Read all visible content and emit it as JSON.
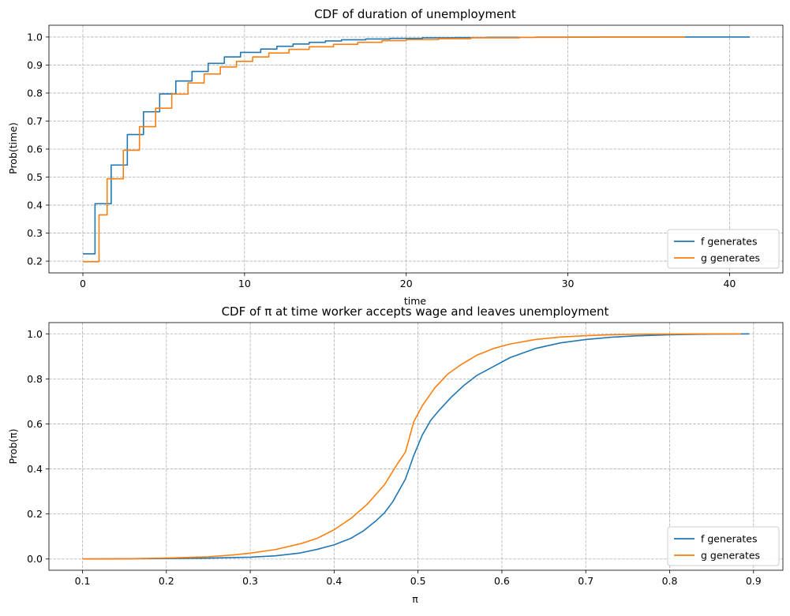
{
  "chart_data": [
    {
      "type": "line",
      "title": "CDF of duration of unemployment",
      "xlabel": "time",
      "ylabel": "Prob(time)",
      "xlim": [
        -2.1,
        43.3
      ],
      "ylim": [
        0.158,
        1.042
      ],
      "xticks": [
        0,
        10,
        20,
        30,
        40
      ],
      "yticks": [
        0.2,
        0.3,
        0.4,
        0.5,
        0.6,
        0.7,
        0.8,
        0.9,
        1.0
      ],
      "grid": true,
      "legend_location": "lower right",
      "step": true,
      "series": [
        {
          "name": "f generates",
          "color": "#1f77b4",
          "x": [
            0,
            0.25,
            0.75,
            1.75,
            2.75,
            3.75,
            4.75,
            5.75,
            6.75,
            7.75,
            8.75,
            9.75,
            11.0,
            12.0,
            13.0,
            14.0,
            15.0,
            16.0,
            17.5,
            19.0,
            21.0,
            23.0,
            25.0,
            28.0,
            32.0,
            41.25
          ],
          "y": [
            0.226,
            0.226,
            0.405,
            0.543,
            0.652,
            0.733,
            0.797,
            0.843,
            0.877,
            0.906,
            0.929,
            0.945,
            0.957,
            0.967,
            0.975,
            0.981,
            0.986,
            0.99,
            0.993,
            0.995,
            0.997,
            0.998,
            0.999,
            0.9995,
            1.0,
            1.0
          ]
        },
        {
          "name": "g generates",
          "color": "#ff7f0e",
          "x": [
            0,
            0.5,
            1.0,
            1.5,
            2.5,
            3.5,
            4.5,
            5.5,
            6.5,
            7.5,
            8.5,
            9.5,
            10.5,
            11.5,
            12.75,
            14.0,
            15.5,
            17.0,
            18.5,
            20.0,
            22.0,
            24.0,
            27.0,
            30.0,
            37.25
          ],
          "y": [
            0.198,
            0.198,
            0.365,
            0.494,
            0.596,
            0.68,
            0.746,
            0.796,
            0.836,
            0.868,
            0.893,
            0.913,
            0.929,
            0.943,
            0.956,
            0.965,
            0.974,
            0.981,
            0.987,
            0.991,
            0.994,
            0.997,
            0.999,
            1.0,
            1.0
          ]
        }
      ]
    },
    {
      "type": "line",
      "title": "CDF of π at time worker accepts wage and leaves unemployment",
      "xlabel": "π",
      "ylabel": "Prob(π)",
      "xlim": [
        0.06,
        0.935
      ],
      "ylim": [
        -0.05,
        1.05
      ],
      "xticks": [
        0.1,
        0.2,
        0.3,
        0.4,
        0.5,
        0.6,
        0.7,
        0.8,
        0.9
      ],
      "yticks": [
        0.0,
        0.2,
        0.4,
        0.6,
        0.8,
        1.0
      ],
      "grid": true,
      "legend_location": "lower right",
      "step": false,
      "series": [
        {
          "name": "f generates",
          "color": "#1f77b4",
          "x": [
            0.1,
            0.15,
            0.2,
            0.25,
            0.3,
            0.33,
            0.36,
            0.38,
            0.4,
            0.42,
            0.435,
            0.45,
            0.46,
            0.47,
            0.485,
            0.495,
            0.505,
            0.515,
            0.525,
            0.54,
            0.555,
            0.57,
            0.59,
            0.61,
            0.64,
            0.67,
            0.7,
            0.73,
            0.76,
            0.8,
            0.85,
            0.895
          ],
          "y": [
            0.0,
            0.001,
            0.002,
            0.004,
            0.008,
            0.014,
            0.027,
            0.043,
            0.063,
            0.092,
            0.125,
            0.17,
            0.205,
            0.255,
            0.355,
            0.46,
            0.55,
            0.615,
            0.66,
            0.72,
            0.772,
            0.815,
            0.855,
            0.895,
            0.935,
            0.96,
            0.975,
            0.985,
            0.991,
            0.996,
            0.999,
            1.0
          ]
        },
        {
          "name": "g generates",
          "color": "#ff7f0e",
          "x": [
            0.1,
            0.15,
            0.2,
            0.25,
            0.28,
            0.3,
            0.33,
            0.36,
            0.38,
            0.4,
            0.42,
            0.44,
            0.46,
            0.475,
            0.485,
            0.495,
            0.505,
            0.52,
            0.535,
            0.55,
            0.57,
            0.59,
            0.61,
            0.64,
            0.67,
            0.7,
            0.73,
            0.76,
            0.8,
            0.85,
            0.885
          ],
          "y": [
            0.0,
            0.001,
            0.004,
            0.01,
            0.018,
            0.026,
            0.042,
            0.068,
            0.092,
            0.13,
            0.18,
            0.245,
            0.33,
            0.42,
            0.475,
            0.61,
            0.68,
            0.76,
            0.82,
            0.86,
            0.905,
            0.935,
            0.955,
            0.975,
            0.986,
            0.992,
            0.996,
            0.998,
            0.999,
            1.0,
            1.0
          ]
        }
      ]
    }
  ]
}
